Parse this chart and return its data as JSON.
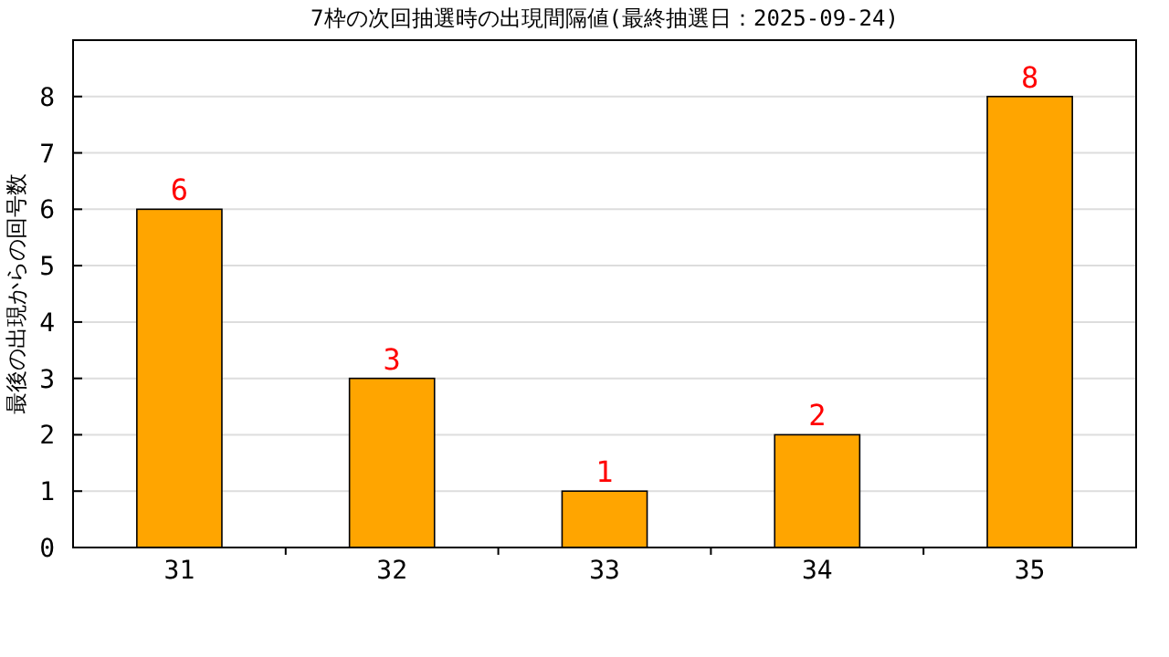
{
  "chart_data": {
    "type": "bar",
    "title": "7枠の次回抽選時の出現間隔値(最終抽選日：2025-09-24)",
    "ylabel": "最後の出現からの回号数",
    "categories": [
      "31",
      "32",
      "33",
      "34",
      "35"
    ],
    "series": [
      {
        "color": "#ffa500",
        "values": [
          6,
          3,
          1,
          2,
          8
        ]
      }
    ],
    "ylim": [
      0,
      9
    ],
    "yticks": [
      0,
      1,
      2,
      3,
      4,
      5,
      6,
      7,
      8
    ],
    "grid": "y",
    "data_labels": true
  }
}
